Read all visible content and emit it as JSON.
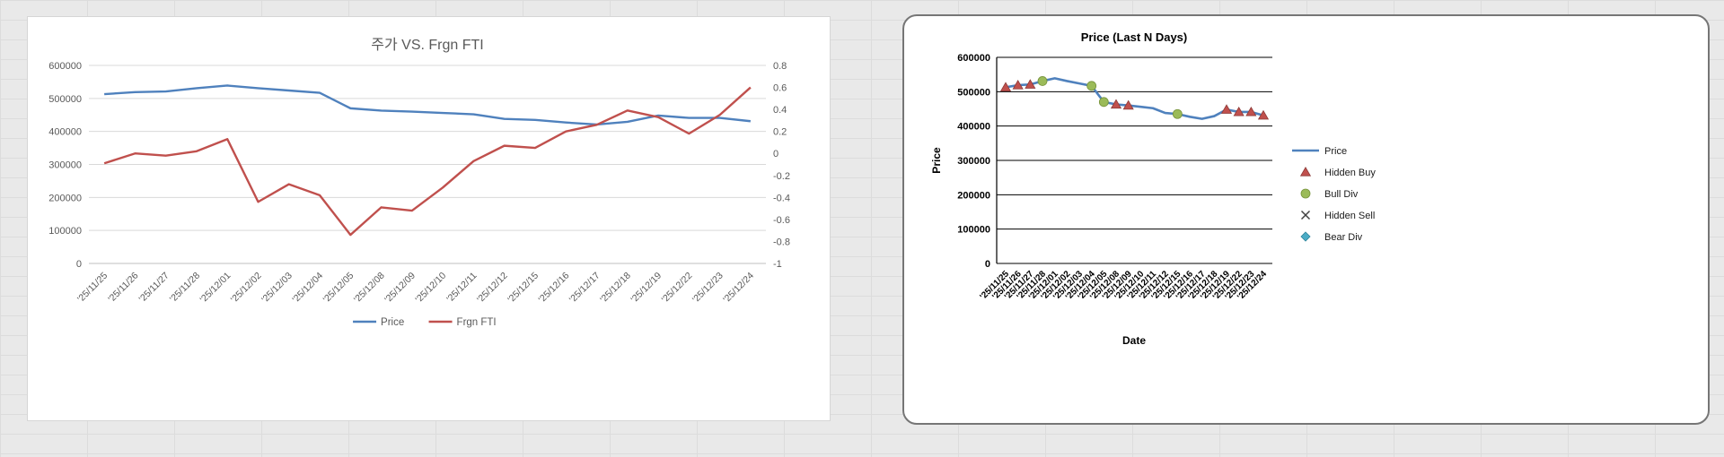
{
  "sheet": {
    "background": "#e9e9e9",
    "gridline": "#dcdcdc"
  },
  "chart_data": [
    {
      "type": "line",
      "title": "주가 VS. Frgn FTI",
      "legend_position": "bottom",
      "grid": true,
      "categories": [
        "'25/11/25",
        "'25/11/26",
        "'25/11/27",
        "'25/11/28",
        "'25/12/01",
        "'25/12/02",
        "'25/12/03",
        "'25/12/04",
        "'25/12/05",
        "'25/12/08",
        "'25/12/09",
        "'25/12/10",
        "'25/12/11",
        "'25/12/12",
        "'25/12/15",
        "'25/12/16",
        "'25/12/17",
        "'25/12/18",
        "'25/12/19",
        "'25/12/22",
        "'25/12/23",
        "'25/12/24"
      ],
      "series": [
        {
          "name": "Price",
          "axis": "left",
          "color": "#4F81BD",
          "values": [
            513000,
            519000,
            521000,
            531000,
            539000,
            531000,
            524000,
            517000,
            470000,
            463000,
            460000,
            456000,
            452000,
            438000,
            435000,
            427000,
            421000,
            429000,
            448000,
            441000,
            441000,
            431000
          ]
        },
        {
          "name": "Frgn FTI",
          "axis": "right",
          "color": "#C0504D",
          "values": [
            -0.09,
            0.0,
            -0.02,
            0.02,
            0.13,
            -0.44,
            -0.28,
            -0.38,
            -0.74,
            -0.49,
            -0.52,
            -0.31,
            -0.07,
            0.07,
            0.05,
            0.2,
            0.26,
            0.39,
            0.33,
            0.18,
            0.35,
            0.6
          ]
        }
      ],
      "left_axis": {
        "min": 0,
        "max": 600000,
        "step": 100000
      },
      "right_axis": {
        "min": -1,
        "max": 0.8,
        "step": 0.2
      }
    },
    {
      "type": "line",
      "title": "Price (Last N Days)",
      "xlabel": "Date",
      "ylabel": "Price",
      "legend_position": "right",
      "grid": true,
      "categories": [
        "'25/11/25",
        "'25/11/26",
        "'25/11/27",
        "'25/11/28",
        "'25/12/01",
        "'25/12/02",
        "'25/12/03",
        "'25/12/04",
        "'25/12/05",
        "'25/12/08",
        "'25/12/09",
        "'25/12/10",
        "'25/12/11",
        "'25/12/12",
        "'25/12/15",
        "'25/12/16",
        "'25/12/17",
        "'25/12/18",
        "'25/12/19",
        "'25/12/22",
        "'25/12/23",
        "'25/12/24"
      ],
      "series": [
        {
          "name": "Price",
          "color": "#4F81BD",
          "values": [
            513000,
            519000,
            521000,
            531000,
            539000,
            531000,
            524000,
            517000,
            470000,
            463000,
            460000,
            456000,
            452000,
            438000,
            435000,
            427000,
            421000,
            429000,
            448000,
            441000,
            441000,
            431000
          ]
        }
      ],
      "markers": [
        {
          "name": "Hidden Buy",
          "shape": "triangle",
          "color": "#C0504D",
          "indices": [
            0,
            1,
            2,
            9,
            10,
            18,
            19,
            20,
            21
          ]
        },
        {
          "name": "Bull Div",
          "shape": "circle",
          "color": "#9BBB59",
          "indices": [
            3,
            7,
            8,
            14
          ]
        },
        {
          "name": "Hidden Sell",
          "shape": "x",
          "color": "#404040",
          "indices": []
        },
        {
          "name": "Bear Div",
          "shape": "diamond",
          "color": "#4BACC6",
          "indices": []
        }
      ],
      "y_axis": {
        "min": 0,
        "max": 600000,
        "step": 100000
      }
    }
  ]
}
